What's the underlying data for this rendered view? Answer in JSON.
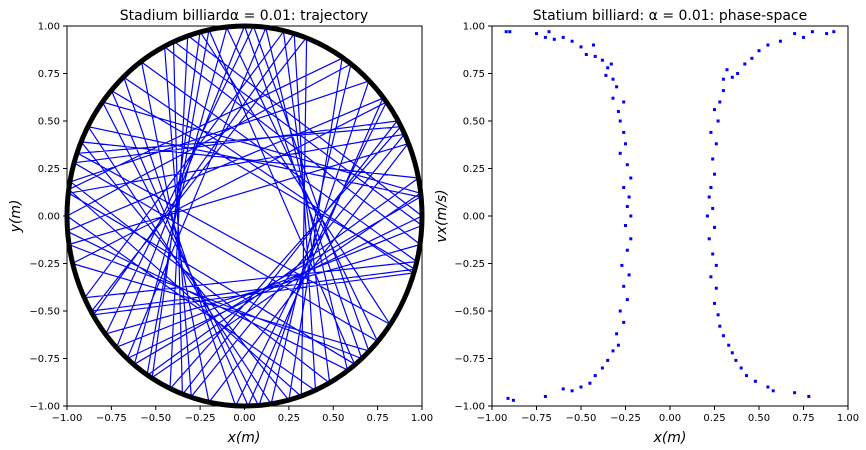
{
  "chart_data": [
    {
      "type": "line",
      "title": "Stadium billiardα = 0.01: trajectory",
      "xlabel": "x(m)",
      "ylabel": "y(m)",
      "xlim": [
        -1,
        1
      ],
      "ylim": [
        -1,
        1
      ],
      "xticks": [
        "−1.00",
        "−0.75",
        "−0.50",
        "−0.25",
        "0.00",
        "0.25",
        "0.50",
        "0.75",
        "1.00"
      ],
      "yticks": [
        "−1.00",
        "−0.75",
        "−0.50",
        "−0.25",
        "0.00",
        "0.25",
        "0.50",
        "0.75",
        "1.00"
      ],
      "boundary": {
        "shape": "stadium",
        "alpha": 0.01,
        "color": "#000000"
      },
      "trajectory_color": "#0000ff",
      "trajectory_points": [
        [
          0.98,
          0.2
        ],
        [
          -0.55,
          -0.84
        ],
        [
          -0.2,
          0.98
        ],
        [
          0.62,
          -0.78
        ],
        [
          -0.99,
          0.12
        ],
        [
          0.9,
          0.43
        ],
        [
          -0.3,
          -0.95
        ],
        [
          -0.45,
          0.89
        ],
        [
          0.99,
          -0.15
        ],
        [
          -0.78,
          -0.62
        ],
        [
          0.05,
          1.0
        ],
        [
          0.7,
          -0.71
        ],
        [
          -0.97,
          -0.25
        ],
        [
          0.8,
          0.6
        ],
        [
          -0.05,
          -1.0
        ],
        [
          -0.68,
          0.73
        ],
        [
          0.95,
          -0.3
        ],
        [
          -0.85,
          -0.52
        ],
        [
          0.28,
          0.96
        ],
        [
          0.4,
          -0.92
        ],
        [
          -1.0,
          0.0
        ],
        [
          0.6,
          0.8
        ],
        [
          0.15,
          -0.99
        ],
        [
          -0.88,
          0.47
        ],
        [
          0.99,
          0.1
        ],
        [
          -0.62,
          -0.78
        ],
        [
          -0.1,
          0.99
        ],
        [
          0.75,
          -0.66
        ],
        [
          -0.96,
          0.28
        ],
        [
          0.86,
          0.5
        ],
        [
          -0.35,
          -0.94
        ],
        [
          -0.4,
          0.92
        ],
        [
          1.0,
          -0.05
        ],
        [
          -0.72,
          -0.69
        ],
        [
          0.0,
          1.0
        ],
        [
          0.66,
          -0.75
        ],
        [
          -0.99,
          -0.15
        ],
        [
          0.92,
          0.38
        ],
        [
          -0.2,
          -0.98
        ],
        [
          -0.58,
          0.81
        ],
        [
          0.97,
          -0.24
        ],
        [
          -0.9,
          -0.43
        ],
        [
          0.22,
          0.97
        ],
        [
          0.48,
          -0.88
        ],
        [
          -0.98,
          0.18
        ],
        [
          0.7,
          0.71
        ],
        [
          0.08,
          -1.0
        ],
        [
          -0.8,
          0.6
        ],
        [
          0.99,
          0.12
        ],
        [
          -0.52,
          -0.85
        ],
        [
          -0.25,
          0.97
        ],
        [
          0.82,
          -0.57
        ],
        [
          -0.94,
          0.33
        ],
        [
          0.88,
          0.47
        ],
        [
          -0.42,
          -0.91
        ],
        [
          -0.32,
          0.95
        ],
        [
          1.0,
          0.0
        ],
        [
          -0.66,
          -0.75
        ],
        [
          0.12,
          0.99
        ],
        [
          0.58,
          -0.81
        ],
        [
          -1.0,
          -0.08
        ],
        [
          0.78,
          0.62
        ],
        [
          0.02,
          -1.0
        ],
        [
          -0.75,
          0.66
        ],
        [
          0.96,
          -0.28
        ],
        [
          -0.86,
          -0.5
        ],
        [
          0.35,
          0.94
        ],
        [
          0.32,
          -0.95
        ],
        [
          -0.99,
          0.14
        ],
        [
          0.55,
          0.83
        ],
        [
          0.25,
          -0.97
        ],
        [
          -0.92,
          0.39
        ],
        [
          0.98,
          0.2
        ]
      ]
    },
    {
      "type": "scatter",
      "title": "Statium billiard: α = 0.01: phase-space",
      "xlabel": "x(m)",
      "ylabel": "vx(m/s)",
      "xlim": [
        -1,
        1
      ],
      "ylim": [
        -1,
        1
      ],
      "xticks": [
        "−1.00",
        "−0.75",
        "−0.50",
        "−0.25",
        "0.00",
        "0.25",
        "0.50",
        "0.75",
        "1.00"
      ],
      "yticks": [
        "−1.00",
        "−0.75",
        "−0.50",
        "−0.25",
        "0.00",
        "0.25",
        "0.50",
        "0.75",
        "1.00"
      ],
      "marker_color": "#0000ff",
      "points": [
        [
          -0.92,
          0.97
        ],
        [
          -0.9,
          0.97
        ],
        [
          -0.75,
          0.96
        ],
        [
          -0.7,
          0.94
        ],
        [
          -0.68,
          0.97
        ],
        [
          -0.65,
          0.93
        ],
        [
          -0.6,
          0.94
        ],
        [
          -0.55,
          0.92
        ],
        [
          -0.5,
          0.89
        ],
        [
          -0.47,
          0.85
        ],
        [
          -0.43,
          0.9
        ],
        [
          -0.42,
          0.84
        ],
        [
          -0.38,
          0.82
        ],
        [
          -0.35,
          0.78
        ],
        [
          -0.33,
          0.8
        ],
        [
          -0.32,
          0.72
        ],
        [
          -0.36,
          0.74
        ],
        [
          -0.3,
          0.68
        ],
        [
          -0.32,
          0.62
        ],
        [
          -0.29,
          0.55
        ],
        [
          -0.26,
          0.6
        ],
        [
          -0.28,
          0.5
        ],
        [
          -0.26,
          0.44
        ],
        [
          -0.25,
          0.38
        ],
        [
          -0.28,
          0.33
        ],
        [
          -0.24,
          0.27
        ],
        [
          -0.22,
          0.2
        ],
        [
          -0.26,
          0.15
        ],
        [
          -0.23,
          0.1
        ],
        [
          -0.24,
          0.05
        ],
        [
          -0.22,
          0.0
        ],
        [
          -0.25,
          -0.05
        ],
        [
          -0.22,
          -0.12
        ],
        [
          -0.24,
          -0.18
        ],
        [
          -0.27,
          -0.26
        ],
        [
          -0.23,
          -0.31
        ],
        [
          -0.26,
          -0.37
        ],
        [
          -0.24,
          -0.44
        ],
        [
          -0.28,
          -0.5
        ],
        [
          -0.26,
          -0.56
        ],
        [
          -0.3,
          -0.62
        ],
        [
          -0.29,
          -0.68
        ],
        [
          -0.32,
          -0.71
        ],
        [
          -0.35,
          -0.76
        ],
        [
          -0.38,
          -0.8
        ],
        [
          -0.42,
          -0.84
        ],
        [
          -0.45,
          -0.88
        ],
        [
          -0.5,
          -0.9
        ],
        [
          -0.55,
          -0.92
        ],
        [
          -0.6,
          -0.91
        ],
        [
          -0.7,
          -0.95
        ],
        [
          -0.88,
          -0.97
        ],
        [
          -0.91,
          -0.96
        ],
        [
          0.92,
          0.97
        ],
        [
          0.88,
          0.96
        ],
        [
          0.8,
          0.97
        ],
        [
          0.75,
          0.94
        ],
        [
          0.7,
          0.96
        ],
        [
          0.62,
          0.92
        ],
        [
          0.55,
          0.9
        ],
        [
          0.5,
          0.87
        ],
        [
          0.46,
          0.83
        ],
        [
          0.42,
          0.8
        ],
        [
          0.38,
          0.75
        ],
        [
          0.35,
          0.73
        ],
        [
          0.32,
          0.77
        ],
        [
          0.3,
          0.72
        ],
        [
          0.3,
          0.66
        ],
        [
          0.28,
          0.6
        ],
        [
          0.25,
          0.56
        ],
        [
          0.27,
          0.5
        ],
        [
          0.23,
          0.44
        ],
        [
          0.26,
          0.38
        ],
        [
          0.24,
          0.3
        ],
        [
          0.25,
          0.22
        ],
        [
          0.23,
          0.15
        ],
        [
          0.22,
          0.1
        ],
        [
          0.24,
          0.04
        ],
        [
          0.21,
          0.0
        ],
        [
          0.25,
          -0.06
        ],
        [
          0.22,
          -0.12
        ],
        [
          0.24,
          -0.2
        ],
        [
          0.26,
          -0.26
        ],
        [
          0.23,
          -0.32
        ],
        [
          0.26,
          -0.38
        ],
        [
          0.25,
          -0.46
        ],
        [
          0.27,
          -0.52
        ],
        [
          0.28,
          -0.58
        ],
        [
          0.3,
          -0.63
        ],
        [
          0.33,
          -0.68
        ],
        [
          0.35,
          -0.72
        ],
        [
          0.37,
          -0.76
        ],
        [
          0.4,
          -0.8
        ],
        [
          0.43,
          -0.84
        ],
        [
          0.48,
          -0.87
        ],
        [
          0.55,
          -0.9
        ],
        [
          0.58,
          -0.92
        ],
        [
          0.7,
          -0.93
        ],
        [
          0.78,
          -0.95
        ]
      ]
    }
  ]
}
